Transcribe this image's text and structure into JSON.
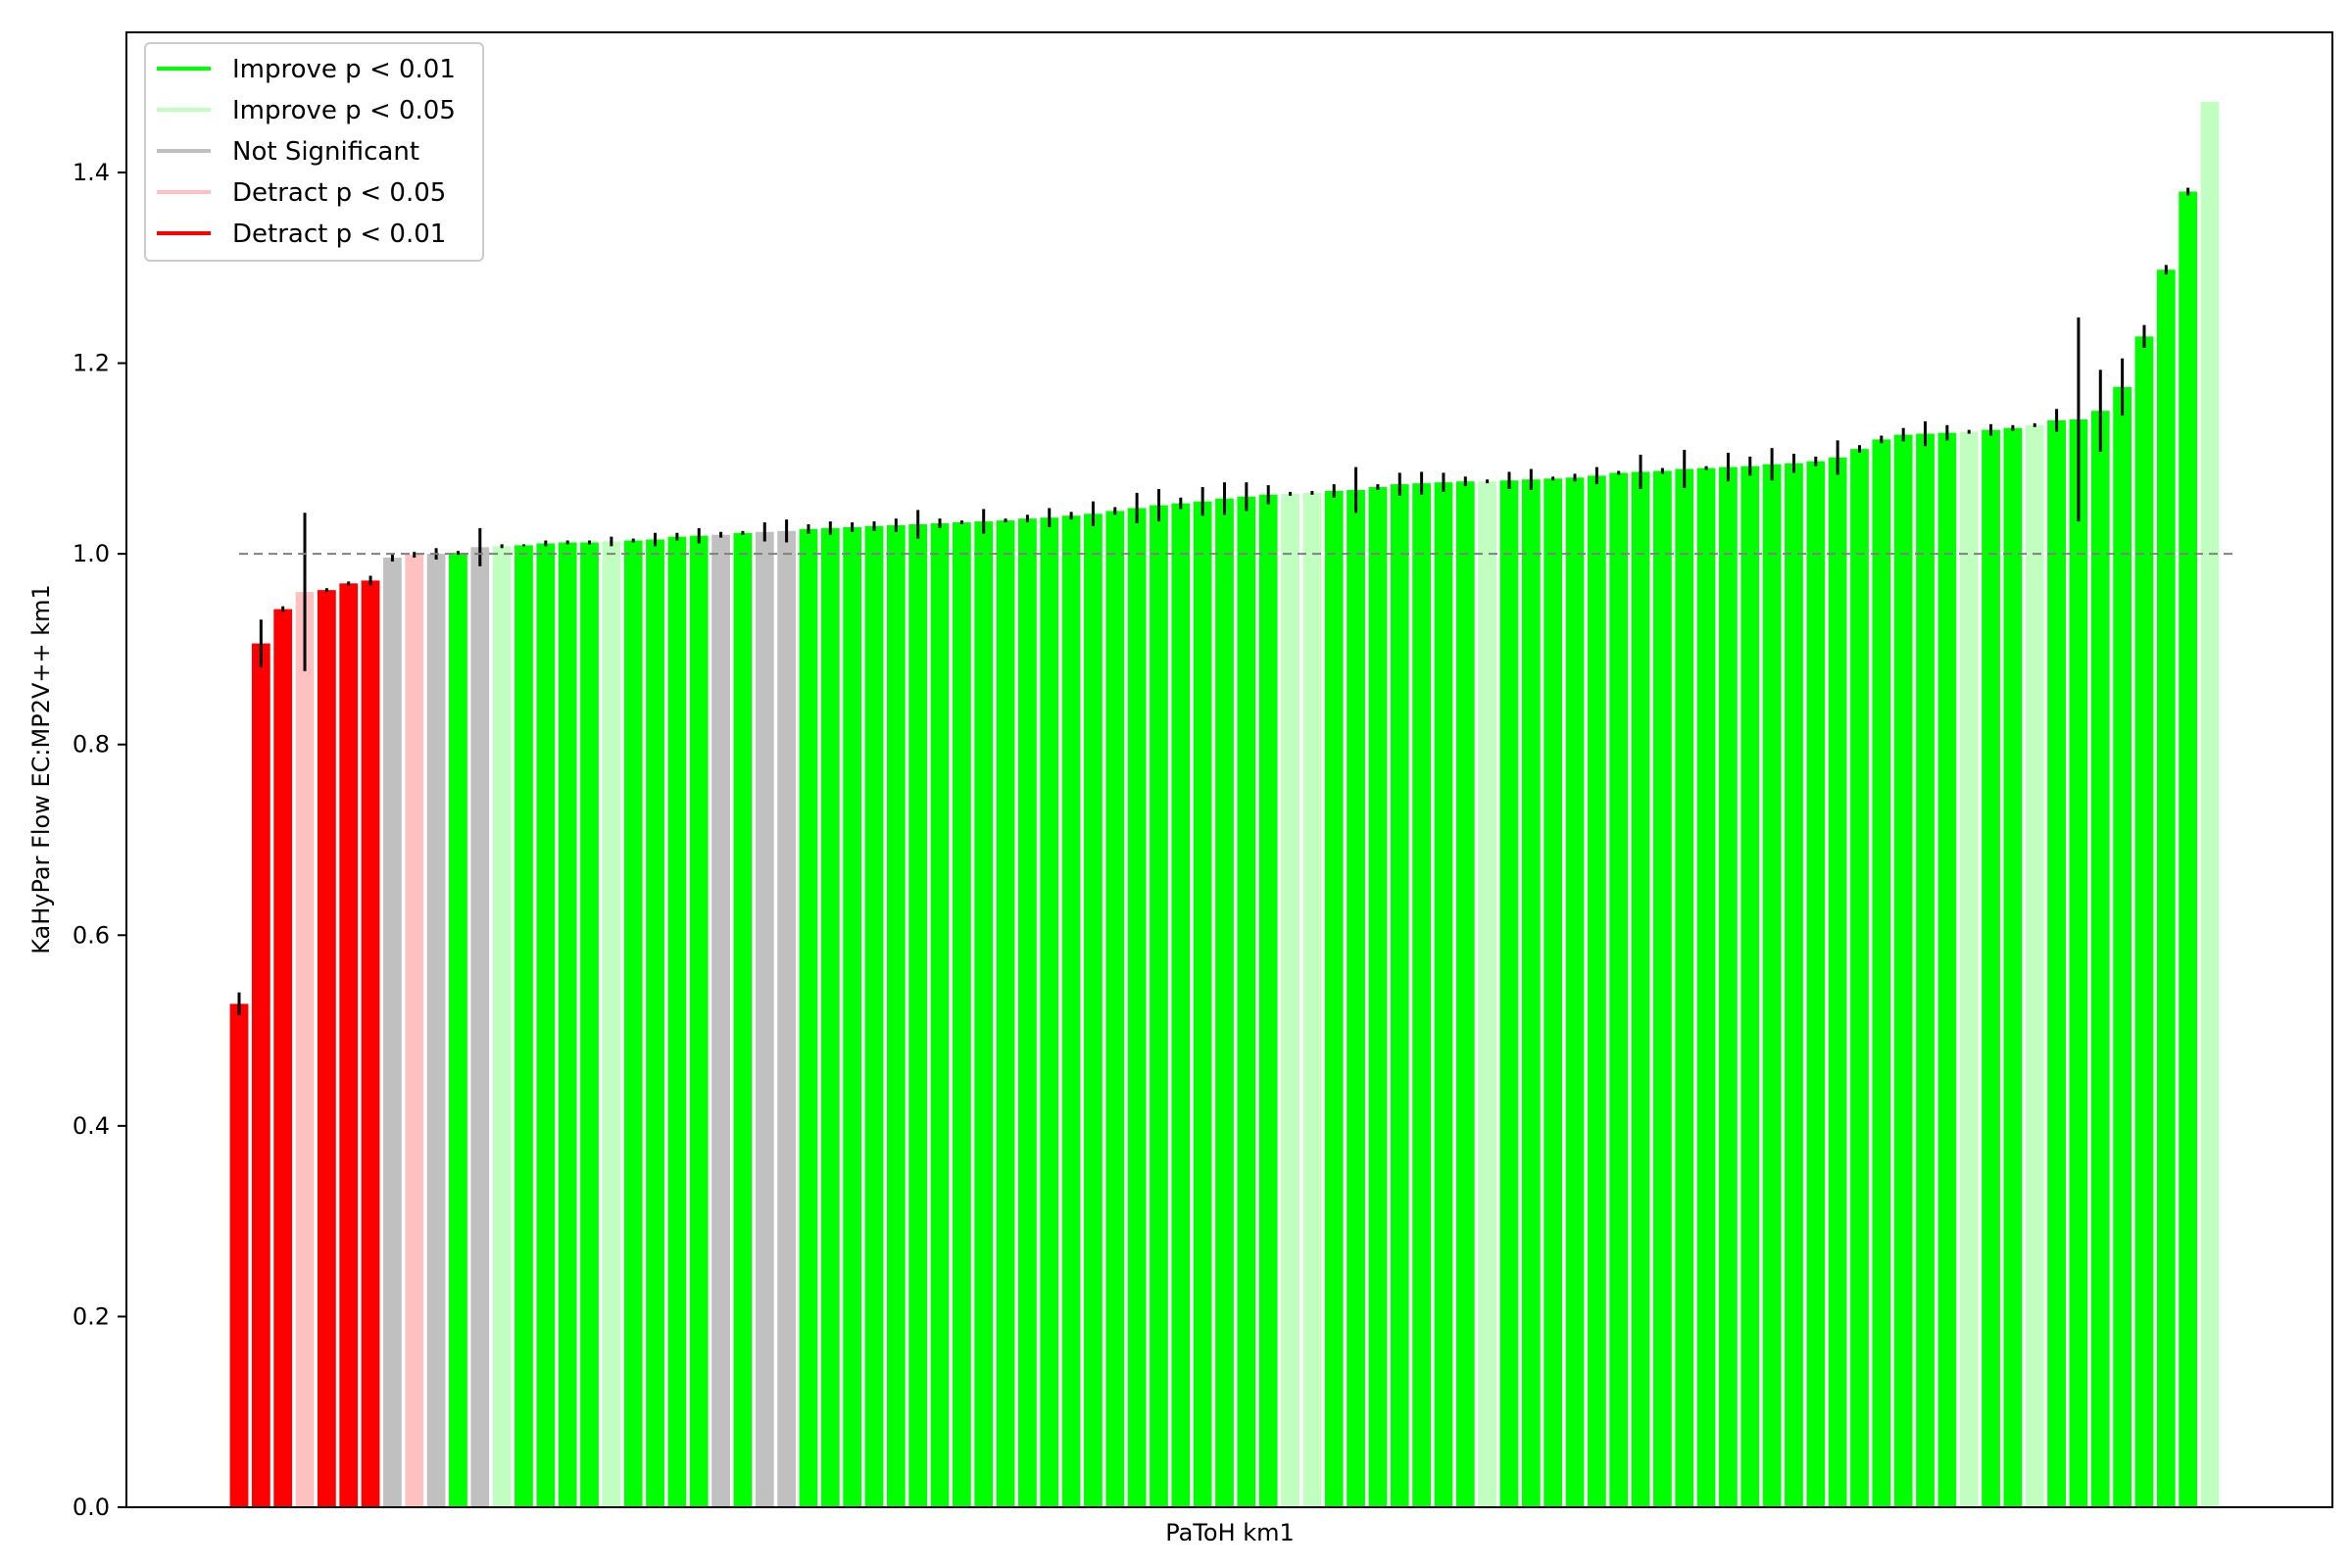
{
  "chart_data": {
    "type": "bar",
    "xlabel": "PaToH km1",
    "ylabel": "KaHyPar Flow EC:MP2V++ km1",
    "ylim": [
      0,
      1.55
    ],
    "yticks": [
      "0.0",
      "0.2",
      "0.4",
      "0.6",
      "0.8",
      "1.0",
      "1.2",
      "1.4"
    ],
    "reference_line": 1.0,
    "legend": {
      "placement": "upper-left",
      "entries": [
        {
          "label": "Improve p < 0.01",
          "color": "#00ff00",
          "key": "g"
        },
        {
          "label": "Improve p < 0.05",
          "color": "#c0ffc0",
          "key": "lg"
        },
        {
          "label": "Not Significant",
          "color": "#c0c0c0",
          "key": "ns"
        },
        {
          "label": "Detract p < 0.05",
          "color": "#ffc0c0",
          "key": "lr"
        },
        {
          "label": "Detract p < 0.01",
          "color": "#ff0000",
          "key": "r"
        }
      ]
    },
    "bars": [
      {
        "value": 0.528,
        "err": 0.012,
        "cls": "r"
      },
      {
        "value": 0.906,
        "err": 0.025,
        "cls": "r"
      },
      {
        "value": 0.942,
        "err": 0.003,
        "cls": "r"
      },
      {
        "value": 0.96,
        "err": 0.083,
        "cls": "lr"
      },
      {
        "value": 0.962,
        "err": 0.002,
        "cls": "r"
      },
      {
        "value": 0.969,
        "err": 0.002,
        "cls": "r"
      },
      {
        "value": 0.972,
        "err": 0.005,
        "cls": "r"
      },
      {
        "value": 0.996,
        "err": 0.004,
        "cls": "ns"
      },
      {
        "value": 0.999,
        "err": 0.003,
        "cls": "lr"
      },
      {
        "value": 1.0,
        "err": 0.006,
        "cls": "ns"
      },
      {
        "value": 1.001,
        "err": 0.002,
        "cls": "g"
      },
      {
        "value": 1.007,
        "err": 0.02,
        "cls": "ns"
      },
      {
        "value": 1.008,
        "err": 0.002,
        "cls": "lg"
      },
      {
        "value": 1.009,
        "err": 0.001,
        "cls": "g"
      },
      {
        "value": 1.011,
        "err": 0.003,
        "cls": "g"
      },
      {
        "value": 1.012,
        "err": 0.002,
        "cls": "g"
      },
      {
        "value": 1.012,
        "err": 0.002,
        "cls": "g"
      },
      {
        "value": 1.013,
        "err": 0.005,
        "cls": "lg"
      },
      {
        "value": 1.014,
        "err": 0.002,
        "cls": "g"
      },
      {
        "value": 1.015,
        "err": 0.007,
        "cls": "g"
      },
      {
        "value": 1.018,
        "err": 0.004,
        "cls": "g"
      },
      {
        "value": 1.019,
        "err": 0.008,
        "cls": "g"
      },
      {
        "value": 1.02,
        "err": 0.003,
        "cls": "ns"
      },
      {
        "value": 1.022,
        "err": 0.002,
        "cls": "g"
      },
      {
        "value": 1.023,
        "err": 0.01,
        "cls": "ns"
      },
      {
        "value": 1.024,
        "err": 0.012,
        "cls": "ns"
      },
      {
        "value": 1.026,
        "err": 0.005,
        "cls": "g"
      },
      {
        "value": 1.027,
        "err": 0.007,
        "cls": "g"
      },
      {
        "value": 1.028,
        "err": 0.005,
        "cls": "g"
      },
      {
        "value": 1.029,
        "err": 0.005,
        "cls": "g"
      },
      {
        "value": 1.03,
        "err": 0.007,
        "cls": "g"
      },
      {
        "value": 1.031,
        "err": 0.015,
        "cls": "g"
      },
      {
        "value": 1.032,
        "err": 0.005,
        "cls": "g"
      },
      {
        "value": 1.033,
        "err": 0.002,
        "cls": "g"
      },
      {
        "value": 1.034,
        "err": 0.013,
        "cls": "g"
      },
      {
        "value": 1.035,
        "err": 0.002,
        "cls": "g"
      },
      {
        "value": 1.037,
        "err": 0.004,
        "cls": "g"
      },
      {
        "value": 1.038,
        "err": 0.01,
        "cls": "g"
      },
      {
        "value": 1.04,
        "err": 0.004,
        "cls": "g"
      },
      {
        "value": 1.042,
        "err": 0.013,
        "cls": "g"
      },
      {
        "value": 1.045,
        "err": 0.004,
        "cls": "g"
      },
      {
        "value": 1.048,
        "err": 0.016,
        "cls": "g"
      },
      {
        "value": 1.051,
        "err": 0.017,
        "cls": "g"
      },
      {
        "value": 1.053,
        "err": 0.006,
        "cls": "g"
      },
      {
        "value": 1.055,
        "err": 0.015,
        "cls": "g"
      },
      {
        "value": 1.058,
        "err": 0.017,
        "cls": "g"
      },
      {
        "value": 1.06,
        "err": 0.015,
        "cls": "g"
      },
      {
        "value": 1.062,
        "err": 0.01,
        "cls": "g"
      },
      {
        "value": 1.063,
        "err": 0.002,
        "cls": "lg"
      },
      {
        "value": 1.064,
        "err": 0.002,
        "cls": "lg"
      },
      {
        "value": 1.066,
        "err": 0.007,
        "cls": "g"
      },
      {
        "value": 1.067,
        "err": 0.024,
        "cls": "g"
      },
      {
        "value": 1.07,
        "err": 0.003,
        "cls": "g"
      },
      {
        "value": 1.073,
        "err": 0.012,
        "cls": "g"
      },
      {
        "value": 1.074,
        "err": 0.012,
        "cls": "g"
      },
      {
        "value": 1.075,
        "err": 0.01,
        "cls": "g"
      },
      {
        "value": 1.076,
        "err": 0.005,
        "cls": "g"
      },
      {
        "value": 1.076,
        "err": 0.002,
        "cls": "lg"
      },
      {
        "value": 1.077,
        "err": 0.009,
        "cls": "g"
      },
      {
        "value": 1.078,
        "err": 0.011,
        "cls": "g"
      },
      {
        "value": 1.079,
        "err": 0.002,
        "cls": "g"
      },
      {
        "value": 1.08,
        "err": 0.004,
        "cls": "g"
      },
      {
        "value": 1.082,
        "err": 0.009,
        "cls": "g"
      },
      {
        "value": 1.085,
        "err": 0.002,
        "cls": "g"
      },
      {
        "value": 1.086,
        "err": 0.018,
        "cls": "g"
      },
      {
        "value": 1.087,
        "err": 0.003,
        "cls": "g"
      },
      {
        "value": 1.089,
        "err": 0.02,
        "cls": "g"
      },
      {
        "value": 1.09,
        "err": 0.002,
        "cls": "g"
      },
      {
        "value": 1.091,
        "err": 0.015,
        "cls": "g"
      },
      {
        "value": 1.092,
        "err": 0.01,
        "cls": "g"
      },
      {
        "value": 1.094,
        "err": 0.017,
        "cls": "g"
      },
      {
        "value": 1.095,
        "err": 0.01,
        "cls": "g"
      },
      {
        "value": 1.097,
        "err": 0.005,
        "cls": "g"
      },
      {
        "value": 1.101,
        "err": 0.018,
        "cls": "g"
      },
      {
        "value": 1.11,
        "err": 0.004,
        "cls": "g"
      },
      {
        "value": 1.12,
        "err": 0.004,
        "cls": "g"
      },
      {
        "value": 1.125,
        "err": 0.007,
        "cls": "g"
      },
      {
        "value": 1.126,
        "err": 0.013,
        "cls": "g"
      },
      {
        "value": 1.127,
        "err": 0.008,
        "cls": "g"
      },
      {
        "value": 1.128,
        "err": 0.002,
        "cls": "lg"
      },
      {
        "value": 1.13,
        "err": 0.006,
        "cls": "g"
      },
      {
        "value": 1.132,
        "err": 0.003,
        "cls": "g"
      },
      {
        "value": 1.135,
        "err": 0.002,
        "cls": "lg"
      },
      {
        "value": 1.14,
        "err": 0.012,
        "cls": "g"
      },
      {
        "value": 1.141,
        "err": 0.107,
        "cls": "g"
      },
      {
        "value": 1.15,
        "err": 0.043,
        "cls": "g"
      },
      {
        "value": 1.175,
        "err": 0.03,
        "cls": "g"
      },
      {
        "value": 1.228,
        "err": 0.012,
        "cls": "g"
      },
      {
        "value": 1.298,
        "err": 0.005,
        "cls": "g"
      },
      {
        "value": 1.38,
        "err": 0.004,
        "cls": "g"
      },
      {
        "value": 1.474,
        "err": 0.0,
        "cls": "lg"
      }
    ]
  }
}
